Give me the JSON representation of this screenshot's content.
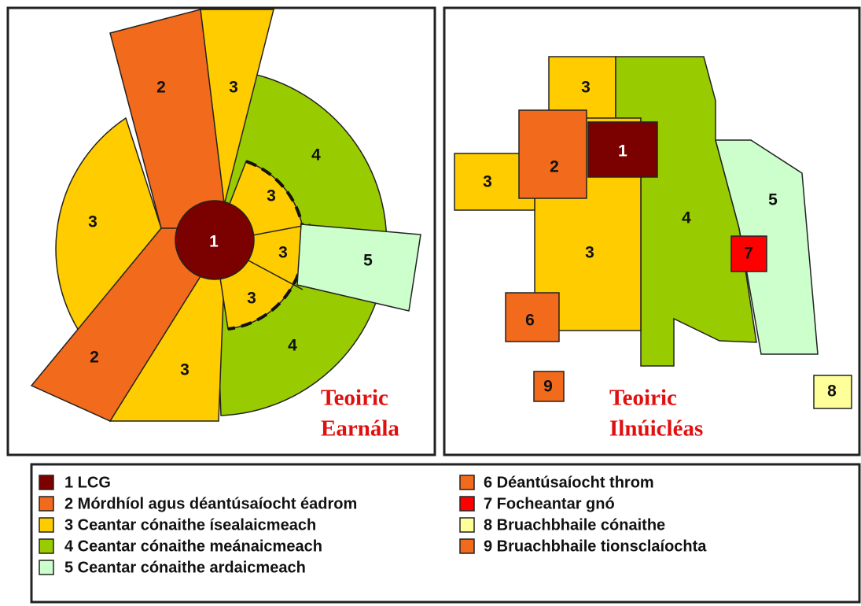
{
  "panels": [
    {
      "title": [
        "Teoiric",
        "Earnála"
      ],
      "labels": [
        "2",
        "3",
        "4",
        "3",
        "3",
        "1",
        "3",
        "5",
        "3",
        "4",
        "3",
        "2"
      ]
    },
    {
      "title": [
        "Teoiric",
        "Ilnúicléas"
      ],
      "labels": [
        "3",
        "1",
        "2",
        "3",
        "5",
        "4",
        "7",
        "3",
        "6",
        "9",
        "8"
      ]
    }
  ],
  "legend": [
    "1 LCG",
    "2 Mórdhíol agus déantúsaíocht éadrom",
    "3 Ceantar cónaithe ísealaicmeach",
    "4 Ceantar cónaithe meánaicmeach",
    "5 Ceantar cónaithe ardaicmeach",
    "6 Déantúsaíocht throm",
    "7 Focheantar gnó",
    "8 Bruachbhaile cónaithe",
    "9 Bruachbhaile tionsclaíochta"
  ]
}
